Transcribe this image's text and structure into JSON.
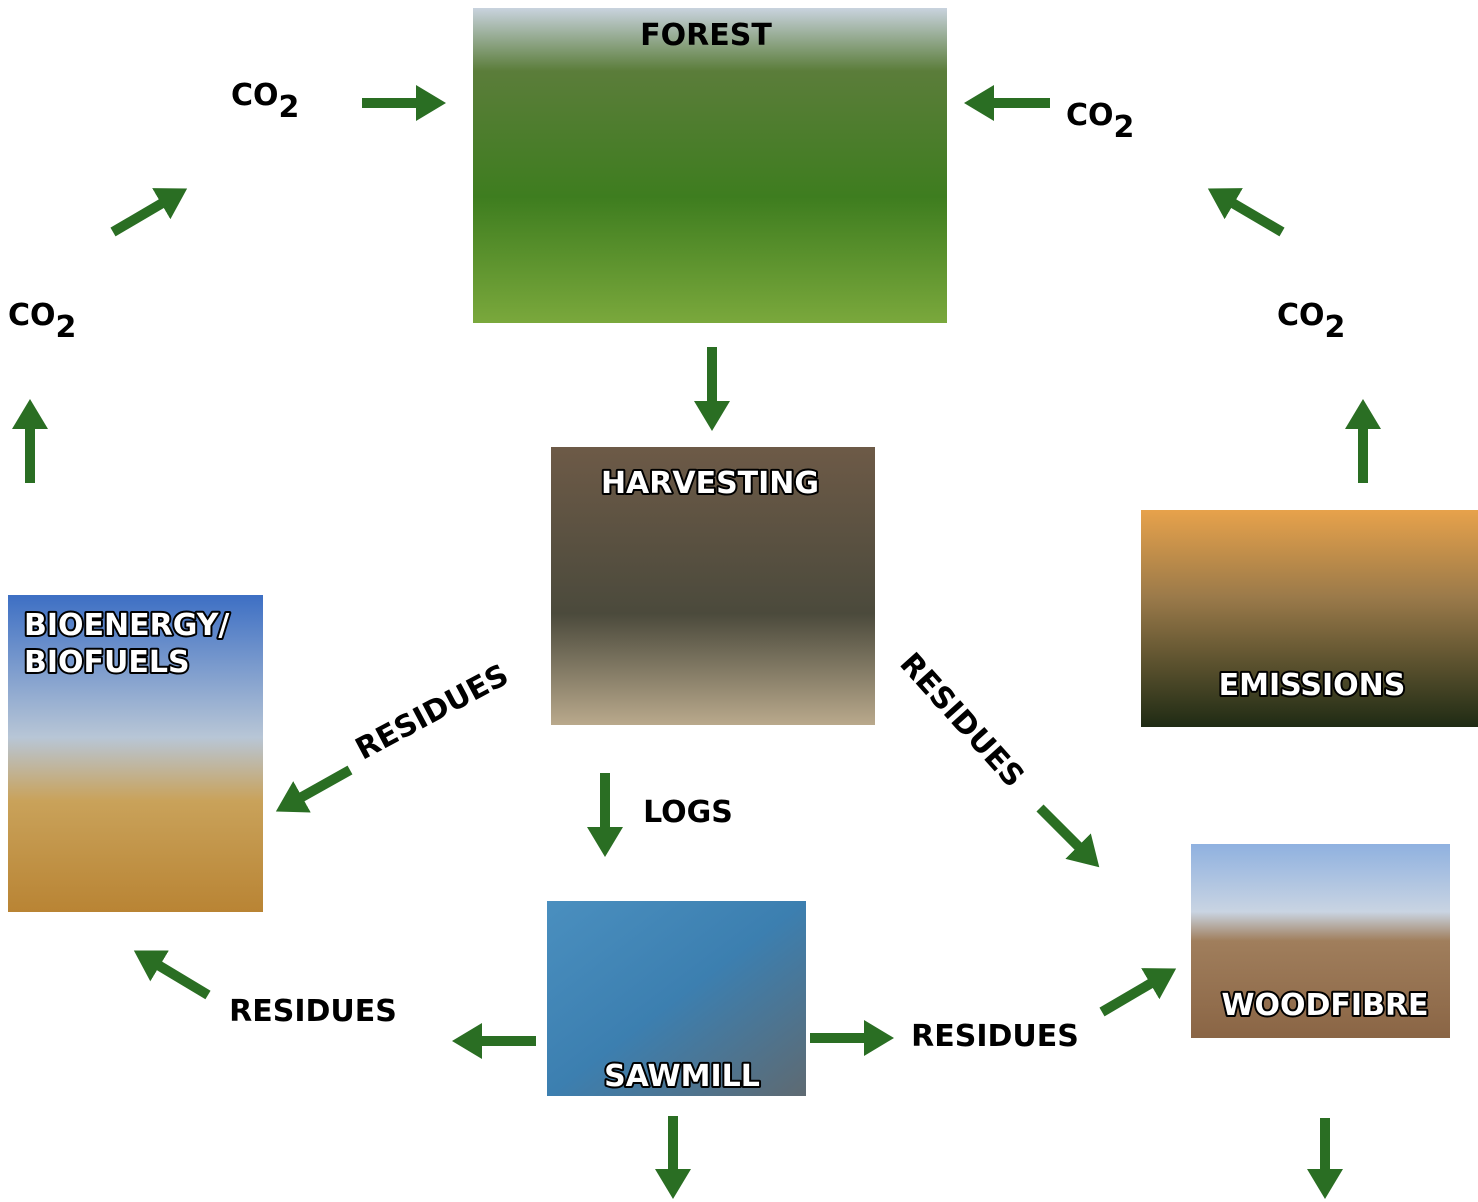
{
  "nodes": {
    "forest": "FOREST",
    "harvesting": "HARVESTING",
    "bioenergy": [
      "BIOENERGY/",
      "BIOFUELS"
    ],
    "emissions": "EMISSIONS",
    "sawmill": "SAWMILL",
    "woodfibre": "WOODFIBRE"
  },
  "co2_labels": [
    {
      "text": "CO",
      "sub": "2"
    },
    {
      "text": "CO",
      "sub": "2"
    },
    {
      "text": "CO",
      "sub": "2"
    },
    {
      "text": "CO",
      "sub": "2"
    }
  ],
  "flow_labels": [
    "RESIDUES",
    "RESIDUES",
    "RESIDUES",
    "RESIDUES",
    "LOGS"
  ]
}
